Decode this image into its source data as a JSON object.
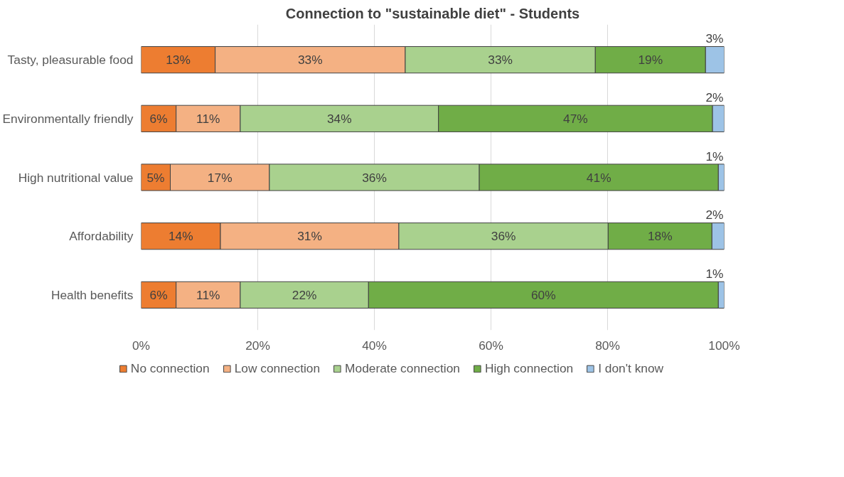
{
  "chart_data": {
    "type": "bar",
    "orientation": "horizontal",
    "stacked": true,
    "title": "Connection to \"sustainable diet\" - Students",
    "categories": [
      "Tasty, pleasurable food",
      "Environmentally friendly",
      "High nutritional value",
      "Affordability",
      "Health benefits"
    ],
    "series": [
      {
        "name": "No connection",
        "color": "#ed7d31",
        "values": [
          12.7,
          6,
          5,
          13.6,
          6
        ],
        "value_labels": [
          "13%",
          "6%",
          "5%",
          "14%",
          "6%"
        ]
      },
      {
        "name": "Low connection",
        "color": "#f4b183",
        "values": [
          32.6,
          11,
          17,
          30.6,
          11
        ],
        "value_labels": [
          "33%",
          "11%",
          "17%",
          "31%",
          "11%"
        ]
      },
      {
        "name": "Moderate connection",
        "color": "#a9d18e",
        "values": [
          32.6,
          34,
          36,
          35.9,
          22
        ],
        "value_labels": [
          "33%",
          "34%",
          "36%",
          "36%",
          "22%"
        ]
      },
      {
        "name": "High connection",
        "color": "#70ad47",
        "values": [
          18.9,
          47,
          41,
          17.8,
          60
        ],
        "value_labels": [
          "19%",
          "47%",
          "41%",
          "18%",
          "60%"
        ]
      },
      {
        "name": "I don't know",
        "color": "#9dc3e6",
        "values": [
          3.2,
          2,
          1,
          2.1,
          1
        ],
        "value_labels": [
          "3%",
          "2%",
          "1%",
          "2%",
          "1%"
        ]
      }
    ],
    "xlim": [
      0,
      100
    ],
    "xticks": [
      {
        "value": 0,
        "label": "0%"
      },
      {
        "value": 20,
        "label": "20%"
      },
      {
        "value": 40,
        "label": "40%"
      },
      {
        "value": 60,
        "label": "60%"
      },
      {
        "value": 80,
        "label": "80%"
      },
      {
        "value": 100,
        "label": "100%"
      }
    ],
    "grid": "x",
    "legend": "bottom"
  }
}
